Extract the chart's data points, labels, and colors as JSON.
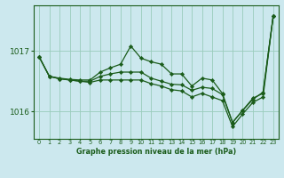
{
  "xlabel": "Graphe pression niveau de la mer (hPa)",
  "bg_color": "#cce8ee",
  "plot_bg_color": "#cce8ee",
  "grid_color": "#99ccbb",
  "line_color": "#1a5c1a",
  "marker_color": "#1a5c1a",
  "yticks": [
    1016,
    1017
  ],
  "ylim": [
    1015.55,
    1017.75
  ],
  "xlim": [
    -0.5,
    23.5
  ],
  "xticks": [
    0,
    1,
    2,
    3,
    4,
    5,
    6,
    7,
    8,
    9,
    10,
    11,
    12,
    13,
    14,
    15,
    16,
    17,
    18,
    19,
    20,
    21,
    22,
    23
  ],
  "series": [
    [
      1016.9,
      1016.58,
      1016.55,
      1016.53,
      1016.52,
      1016.52,
      1016.65,
      1016.72,
      1016.78,
      1017.08,
      1016.88,
      1016.82,
      1016.78,
      1016.62,
      1016.62,
      1016.42,
      1016.55,
      1016.52,
      1016.3,
      1015.82,
      1016.02,
      1016.22,
      1016.3,
      1017.58
    ],
    [
      1016.9,
      1016.58,
      1016.54,
      1016.52,
      1016.5,
      1016.5,
      1016.58,
      1016.62,
      1016.65,
      1016.65,
      1016.65,
      1016.55,
      1016.5,
      1016.45,
      1016.44,
      1016.35,
      1016.4,
      1016.38,
      1016.28,
      1015.82,
      1016.02,
      1016.2,
      1016.32,
      1017.58
    ],
    [
      1016.9,
      1016.58,
      1016.54,
      1016.52,
      1016.5,
      1016.48,
      1016.52,
      1016.52,
      1016.52,
      1016.52,
      1016.52,
      1016.46,
      1016.42,
      1016.36,
      1016.34,
      1016.24,
      1016.3,
      1016.24,
      1016.18,
      1015.75,
      1015.96,
      1016.15,
      1016.24,
      1017.58
    ]
  ]
}
